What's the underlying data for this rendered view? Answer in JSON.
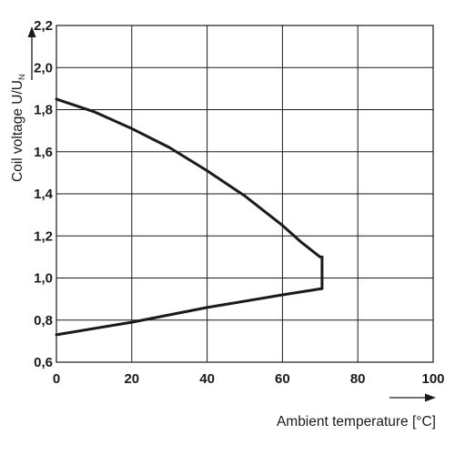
{
  "chart_data": {
    "type": "line",
    "title": "",
    "xlabel": "Ambient temperature [°C]",
    "ylabel_main": "Coil voltage U/U",
    "ylabel_sub": "N",
    "xlim": [
      0,
      100
    ],
    "ylim": [
      0.6,
      2.2
    ],
    "x_ticks": [
      0,
      20,
      40,
      60,
      80,
      100
    ],
    "y_ticks": [
      0.6,
      0.8,
      1.0,
      1.2,
      1.4,
      1.6,
      1.8,
      2.0,
      2.2
    ],
    "x_tick_labels": [
      "0",
      "20",
      "40",
      "60",
      "80",
      "100"
    ],
    "y_tick_labels": [
      "0,6",
      "0,8",
      "1,0",
      "1,2",
      "1,4",
      "1,6",
      "1,8",
      "2,0",
      "2,2"
    ],
    "grid": true,
    "legend": "none",
    "line_color": "#1a1a1a",
    "series": [
      {
        "x": [
          0,
          10,
          20,
          30,
          40,
          50,
          60,
          65,
          70,
          70.5
        ],
        "y": [
          1.85,
          1.79,
          1.71,
          1.62,
          1.51,
          1.39,
          1.25,
          1.17,
          1.1,
          1.1
        ]
      },
      {
        "x": [
          70.5,
          70.5
        ],
        "y": [
          1.1,
          0.95
        ]
      },
      {
        "x": [
          70.5,
          60,
          40,
          20,
          0
        ],
        "y": [
          0.95,
          0.92,
          0.86,
          0.79,
          0.73
        ]
      }
    ]
  }
}
